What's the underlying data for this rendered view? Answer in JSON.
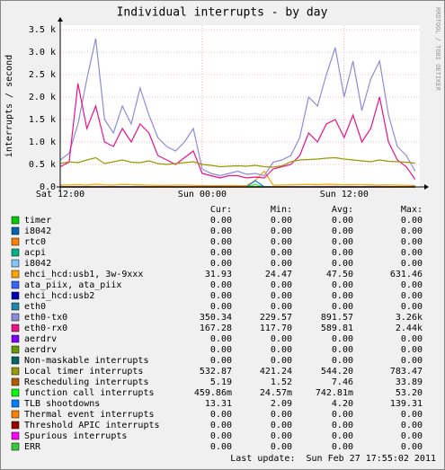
{
  "chart_data": {
    "type": "line",
    "title": "Individual interrupts - by day",
    "ylabel": "interrupts / second",
    "watermark": "RRDTOOL / TOBI OETIKER",
    "x": [
      0,
      0.75,
      1.5,
      2.25,
      3,
      3.75,
      4.5,
      5.25,
      6,
      6.75,
      7.5,
      8.25,
      9,
      9.75,
      10.5,
      11.25,
      12,
      12.75,
      13.5,
      14.25,
      15,
      15.75,
      16.5,
      17.25,
      18,
      18.75,
      19.5,
      20.25,
      21,
      21.75,
      22.5,
      23.25,
      24,
      24.75,
      25.5,
      26.25,
      27,
      27.75,
      28.5,
      29.25,
      30
    ],
    "xlim": [
      0,
      30.4
    ],
    "xticks": [
      {
        "value": 0,
        "label": "Sat 12:00"
      },
      {
        "value": 12,
        "label": "Sun 00:00"
      },
      {
        "value": 24,
        "label": "Sun 12:00"
      }
    ],
    "ylim": [
      0,
      3600
    ],
    "yticks": [
      {
        "value": 0,
        "label": "0.0"
      },
      {
        "value": 500,
        "label": "0.5 k"
      },
      {
        "value": 1000,
        "label": "1.0 k"
      },
      {
        "value": 1500,
        "label": "1.5 k"
      },
      {
        "value": 2000,
        "label": "2.0 k"
      },
      {
        "value": 2500,
        "label": "2.5 k"
      },
      {
        "value": 3000,
        "label": "3.0 k"
      },
      {
        "value": 3500,
        "label": "3.5 k"
      }
    ],
    "grid": true,
    "columns": [
      "Cur:",
      "Min:",
      "Avg:",
      "Max:"
    ],
    "series": [
      {
        "name": "timer",
        "color": "#00cc00",
        "stats": [
          "0.00",
          "0.00",
          "0.00",
          "0.00"
        ],
        "values": [
          0,
          0,
          0,
          0,
          0,
          0,
          0,
          0,
          0,
          0,
          0,
          0,
          0,
          0,
          0,
          0,
          0,
          0,
          0,
          0,
          0,
          0,
          0,
          0,
          0,
          0,
          0,
          0,
          0,
          0,
          0,
          0,
          0,
          0,
          0,
          0,
          0,
          0,
          0,
          0,
          0
        ]
      },
      {
        "name": "i8042",
        "color": "#0066b3",
        "stats": [
          "0.00",
          "0.00",
          "0.00",
          "0.00"
        ],
        "values": [
          0,
          0,
          0,
          0,
          0,
          0,
          0,
          0,
          0,
          0,
          0,
          0,
          0,
          0,
          0,
          0,
          0,
          0,
          0,
          0,
          0,
          0,
          0,
          0,
          0,
          0,
          0,
          0,
          0,
          0,
          0,
          0,
          0,
          0,
          0,
          0,
          0,
          0,
          0,
          0,
          0
        ]
      },
      {
        "name": "rtc0",
        "color": "#ff8000",
        "stats": [
          "0.00",
          "0.00",
          "0.00",
          "0.00"
        ],
        "values": [
          0,
          0,
          0,
          0,
          0,
          0,
          0,
          0,
          0,
          0,
          0,
          0,
          0,
          0,
          0,
          0,
          0,
          0,
          0,
          0,
          0,
          0,
          0,
          0,
          0,
          0,
          0,
          0,
          0,
          0,
          0,
          0,
          0,
          0,
          0,
          0,
          0,
          0,
          0,
          0,
          0
        ]
      },
      {
        "name": "acpi",
        "color": "#00b380",
        "stats": [
          "0.00",
          "0.00",
          "0.00",
          "0.00"
        ],
        "values": [
          0,
          0,
          0,
          0,
          0,
          0,
          0,
          0,
          0,
          0,
          0,
          0,
          0,
          0,
          0,
          0,
          0,
          0,
          0,
          0,
          0,
          0,
          0,
          0,
          0,
          0,
          0,
          0,
          0,
          0,
          0,
          0,
          0,
          0,
          0,
          0,
          0,
          0,
          0,
          0,
          0
        ]
      },
      {
        "name": "i8042",
        "color": "#80c9ff",
        "stats": [
          "0.00",
          "0.00",
          "0.00",
          "0.00"
        ],
        "values": [
          0,
          0,
          0,
          0,
          0,
          0,
          0,
          0,
          0,
          0,
          0,
          0,
          0,
          0,
          0,
          0,
          0,
          0,
          0,
          0,
          0,
          0,
          0,
          0,
          0,
          0,
          0,
          0,
          0,
          0,
          0,
          0,
          0,
          0,
          0,
          0,
          0,
          0,
          0,
          0,
          0
        ]
      },
      {
        "name": "ehci_hcd:usb1, 3w-9xxx",
        "color": "#ffa500",
        "stats": [
          "31.93",
          "24.47",
          "47.50",
          "631.46"
        ],
        "values": [
          40,
          45,
          50,
          40,
          60,
          45,
          40,
          55,
          50,
          45,
          40,
          35,
          35,
          40,
          40,
          35,
          30,
          30,
          30,
          35,
          30,
          30,
          150,
          350,
          40,
          40,
          45,
          50,
          55,
          50,
          60,
          55,
          45,
          50,
          50,
          45,
          40,
          45,
          40,
          35,
          32
        ]
      },
      {
        "name": "ata_piix, ata_piix",
        "color": "#3366ff",
        "stats": [
          "0.00",
          "0.00",
          "0.00",
          "0.00"
        ],
        "values": [
          0,
          0,
          0,
          0,
          0,
          0,
          0,
          0,
          0,
          0,
          0,
          0,
          0,
          0,
          0,
          0,
          0,
          0,
          0,
          0,
          0,
          0,
          0,
          0,
          0,
          0,
          0,
          0,
          0,
          0,
          0,
          0,
          0,
          0,
          0,
          0,
          0,
          0,
          0,
          0,
          0
        ]
      },
      {
        "name": "ehci_hcd:usb2",
        "color": "#0000b3",
        "stats": [
          "0.00",
          "0.00",
          "0.00",
          "0.00"
        ],
        "values": [
          0,
          0,
          0,
          0,
          0,
          0,
          0,
          0,
          0,
          0,
          0,
          0,
          0,
          0,
          0,
          0,
          0,
          0,
          0,
          0,
          0,
          0,
          0,
          0,
          0,
          0,
          0,
          0,
          0,
          0,
          0,
          0,
          0,
          0,
          0,
          0,
          0,
          0,
          0,
          0,
          0
        ]
      },
      {
        "name": "eth0",
        "color": "#2288aa",
        "stats": [
          "0.00",
          "0.00",
          "0.00",
          "0.00"
        ],
        "values": [
          0,
          0,
          0,
          0,
          0,
          0,
          0,
          0,
          0,
          0,
          0,
          0,
          0,
          0,
          0,
          0,
          0,
          0,
          0,
          0,
          0,
          0,
          0,
          0,
          0,
          0,
          0,
          0,
          0,
          0,
          0,
          0,
          0,
          0,
          0,
          0,
          0,
          0,
          0,
          0,
          0
        ]
      },
      {
        "name": "eth0-tx0",
        "color": "#8c8cd9",
        "stats": [
          "350.34",
          "229.57",
          "891.57",
          "3.26k"
        ],
        "values": [
          600,
          750,
          1400,
          2400,
          3300,
          1500,
          1200,
          1800,
          1400,
          2200,
          1600,
          1100,
          900,
          800,
          1000,
          1300,
          400,
          300,
          250,
          300,
          350,
          280,
          300,
          250,
          550,
          600,
          700,
          1100,
          2000,
          1800,
          2500,
          3100,
          2000,
          2800,
          1700,
          2400,
          2800,
          1600,
          900,
          700,
          350
        ]
      },
      {
        "name": "eth0-rx0",
        "color": "#ee1188",
        "stats": [
          "167.28",
          "117.70",
          "589.81",
          "2.44k"
        ],
        "values": [
          450,
          550,
          2300,
          1300,
          1800,
          1000,
          900,
          1300,
          1000,
          1400,
          1200,
          700,
          600,
          500,
          650,
          800,
          300,
          250,
          200,
          250,
          250,
          200,
          220,
          200,
          400,
          450,
          500,
          700,
          1200,
          1000,
          1400,
          1500,
          1100,
          1600,
          1000,
          1300,
          2000,
          1000,
          600,
          450,
          170
        ]
      },
      {
        "name": "aerdrv",
        "color": "#8000ff",
        "stats": [
          "0.00",
          "0.00",
          "0.00",
          "0.00"
        ],
        "values": [
          0,
          0,
          0,
          0,
          0,
          0,
          0,
          0,
          0,
          0,
          0,
          0,
          0,
          0,
          0,
          0,
          0,
          0,
          0,
          0,
          0,
          0,
          0,
          0,
          0,
          0,
          0,
          0,
          0,
          0,
          0,
          0,
          0,
          0,
          0,
          0,
          0,
          0,
          0,
          0,
          0
        ]
      },
      {
        "name": "aerdrv",
        "color": "#669900",
        "stats": [
          "0.00",
          "0.00",
          "0.00",
          "0.00"
        ],
        "values": [
          0,
          0,
          0,
          0,
          0,
          0,
          0,
          0,
          0,
          0,
          0,
          0,
          0,
          0,
          0,
          0,
          0,
          0,
          0,
          0,
          0,
          0,
          0,
          0,
          0,
          0,
          0,
          0,
          0,
          0,
          0,
          0,
          0,
          0,
          0,
          0,
          0,
          0,
          0,
          0,
          0
        ]
      },
      {
        "name": "Non-maskable interrupts",
        "color": "#006666",
        "stats": [
          "0.00",
          "0.00",
          "0.00",
          "0.00"
        ],
        "values": [
          0,
          0,
          0,
          0,
          0,
          0,
          0,
          0,
          0,
          0,
          0,
          0,
          0,
          0,
          0,
          0,
          0,
          0,
          0,
          0,
          0,
          0,
          0,
          0,
          0,
          0,
          0,
          0,
          0,
          0,
          0,
          0,
          0,
          0,
          0,
          0,
          0,
          0,
          0,
          0,
          0
        ]
      },
      {
        "name": "Local timer interrupts",
        "color": "#999900",
        "stats": [
          "532.87",
          "421.24",
          "544.20",
          "783.47"
        ],
        "values": [
          520,
          560,
          540,
          600,
          650,
          520,
          560,
          600,
          550,
          540,
          580,
          520,
          500,
          520,
          540,
          560,
          500,
          480,
          450,
          460,
          470,
          460,
          480,
          450,
          440,
          470,
          560,
          600,
          610,
          620,
          640,
          650,
          620,
          600,
          580,
          560,
          600,
          570,
          560,
          550,
          530
        ]
      },
      {
        "name": "Rescheduling interrupts",
        "color": "#b35a00",
        "stats": [
          "5.19",
          "1.52",
          "7.46",
          "33.89"
        ],
        "values": [
          5,
          6,
          8,
          9,
          10,
          8,
          7,
          9,
          8,
          10,
          9,
          6,
          6,
          5,
          6,
          7,
          4,
          3,
          3,
          3,
          3,
          3,
          4,
          4,
          5,
          6,
          7,
          8,
          9,
          10,
          11,
          12,
          9,
          10,
          9,
          10,
          11,
          8,
          6,
          6,
          5
        ]
      },
      {
        "name": "function call interrupts",
        "color": "#00ff00",
        "stats": [
          "459.86m",
          "24.57m",
          "742.81m",
          "53.20"
        ],
        "values": [
          0.5,
          0.6,
          0.8,
          0.9,
          1,
          0.8,
          0.7,
          0.9,
          0.8,
          1,
          0.9,
          0.6,
          0.6,
          0.5,
          0.6,
          0.7,
          0.4,
          0.3,
          0.3,
          0.3,
          0.3,
          0.3,
          53.2,
          0.4,
          0.5,
          0.6,
          0.7,
          0.8,
          0.9,
          1,
          1.1,
          1.2,
          0.9,
          1,
          0.9,
          1,
          1.1,
          0.8,
          0.6,
          0.6,
          0.46
        ]
      },
      {
        "name": "TLB shootdowns",
        "color": "#0080ff",
        "stats": [
          "13.31",
          "2.09",
          "4.20",
          "139.31"
        ],
        "values": [
          4,
          4,
          5,
          6,
          6,
          5,
          4,
          5,
          5,
          6,
          5,
          4,
          3,
          3,
          3,
          4,
          3,
          2,
          2,
          2,
          3,
          3,
          139,
          3,
          3,
          4,
          4,
          5,
          5,
          6,
          6,
          7,
          5,
          6,
          5,
          6,
          6,
          5,
          4,
          4,
          13
        ]
      },
      {
        "name": "Thermal event interrupts",
        "color": "#ff8000",
        "stats": [
          "0.00",
          "0.00",
          "0.00",
          "0.00"
        ],
        "values": [
          0,
          0,
          0,
          0,
          0,
          0,
          0,
          0,
          0,
          0,
          0,
          0,
          0,
          0,
          0,
          0,
          0,
          0,
          0,
          0,
          0,
          0,
          0,
          0,
          0,
          0,
          0,
          0,
          0,
          0,
          0,
          0,
          0,
          0,
          0,
          0,
          0,
          0,
          0,
          0,
          0
        ]
      },
      {
        "name": "Threshold APIC interrupts",
        "color": "#990000",
        "stats": [
          "0.00",
          "0.00",
          "0.00",
          "0.00"
        ],
        "values": [
          0,
          0,
          0,
          0,
          0,
          0,
          0,
          0,
          0,
          0,
          0,
          0,
          0,
          0,
          0,
          0,
          0,
          0,
          0,
          0,
          0,
          0,
          0,
          0,
          0,
          0,
          0,
          0,
          0,
          0,
          0,
          0,
          0,
          0,
          0,
          0,
          0,
          0,
          0,
          0,
          0
        ]
      },
      {
        "name": "Spurious interrupts",
        "color": "#ff00ff",
        "stats": [
          "0.00",
          "0.00",
          "0.00",
          "0.00"
        ],
        "values": [
          0,
          0,
          0,
          0,
          0,
          0,
          0,
          0,
          0,
          0,
          0,
          0,
          0,
          0,
          0,
          0,
          0,
          0,
          0,
          0,
          0,
          0,
          0,
          0,
          0,
          0,
          0,
          0,
          0,
          0,
          0,
          0,
          0,
          0,
          0,
          0,
          0,
          0,
          0,
          0,
          0
        ]
      },
      {
        "name": "ERR",
        "color": "#33cc33",
        "stats": [
          "0.00",
          "0.00",
          "0.00",
          "0.00"
        ],
        "values": [
          0,
          0,
          0,
          0,
          0,
          0,
          0,
          0,
          0,
          0,
          0,
          0,
          0,
          0,
          0,
          0,
          0,
          0,
          0,
          0,
          0,
          0,
          0,
          0,
          0,
          0,
          0,
          0,
          0,
          0,
          0,
          0,
          0,
          0,
          0,
          0,
          0,
          0,
          0,
          0,
          0
        ]
      }
    ],
    "last_update": "Last update:  Sun Feb 27 17:55:02 2011"
  }
}
